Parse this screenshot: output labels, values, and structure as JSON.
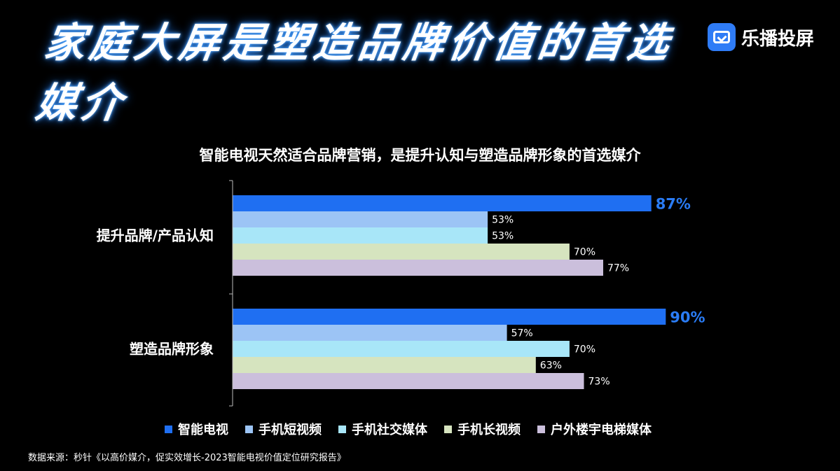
{
  "headline": "家庭大屏是塑造品牌价值的首选媒介",
  "logo": {
    "text": "乐播投屏",
    "icon": "tv-screen-cast-icon"
  },
  "source": "数据来源：秒针《以高价媒介，促实效增长-2023智能电视价值定位研究报告》",
  "chart_data": {
    "type": "bar",
    "orientation": "horizontal",
    "title": "智能电视天然适合品牌营销，是提升认知与塑造品牌形象的首选媒介",
    "categories": [
      "提升品牌/产品认知",
      "塑造品牌形象"
    ],
    "series": [
      {
        "name": "智能电视",
        "values": [
          87,
          90
        ],
        "color": "#1f6ff2"
      },
      {
        "name": "手机短视频",
        "values": [
          53,
          57
        ],
        "color": "#9cc4f5"
      },
      {
        "name": "手机社交媒体",
        "values": [
          53,
          70
        ],
        "color": "#a8e6f8"
      },
      {
        "name": "手机长视频",
        "values": [
          70,
          63
        ],
        "color": "#d6e4bf"
      },
      {
        "name": "户外楼宇电梯媒体",
        "values": [
          77,
          73
        ],
        "color": "#cbbfdc"
      }
    ],
    "value_suffix": "%",
    "xlim": [
      0,
      100
    ],
    "grid": false,
    "legend": "bottom"
  }
}
